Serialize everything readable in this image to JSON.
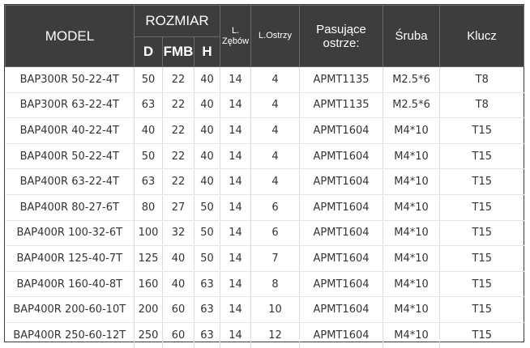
{
  "headers": {
    "model": "MODEL",
    "rozmiar": "ROZMIAR",
    "d": "D",
    "fmb": "FMB",
    "h": "H",
    "zebow_line1": "L.",
    "zebow_line2": "Zębów",
    "ostrzy": "L.Ostrzy",
    "pasujace_line1": "Pasujące",
    "pasujace_line2": "ostrze:",
    "sruba": "Śruba",
    "klucz": "Klucz"
  },
  "rows": [
    {
      "model": "BAP300R 50-22-4T",
      "d": "50",
      "fmb": "22",
      "h": "40",
      "zebow": "14",
      "ostrzy": "4",
      "ostrze": "APMT1135",
      "sruba": "M2.5*6",
      "klucz": "T8"
    },
    {
      "model": "BAP300R 63-22-4T",
      "d": "63",
      "fmb": "22",
      "h": "40",
      "zebow": "14",
      "ostrzy": "4",
      "ostrze": "APMT1135",
      "sruba": "M2.5*6",
      "klucz": "T8"
    },
    {
      "model": "BAP400R 40-22-4T",
      "d": "40",
      "fmb": "22",
      "h": "40",
      "zebow": "14",
      "ostrzy": "4",
      "ostrze": "APMT1604",
      "sruba": "M4*10",
      "klucz": "T15"
    },
    {
      "model": "BAP400R 50-22-4T",
      "d": "50",
      "fmb": "22",
      "h": "40",
      "zebow": "14",
      "ostrzy": "4",
      "ostrze": "APMT1604",
      "sruba": "M4*10",
      "klucz": "T15"
    },
    {
      "model": "BAP400R 63-22-4T",
      "d": "63",
      "fmb": "22",
      "h": "40",
      "zebow": "14",
      "ostrzy": "4",
      "ostrze": "APMT1604",
      "sruba": "M4*10",
      "klucz": "T15"
    },
    {
      "model": "BAP400R 80-27-6T",
      "d": "80",
      "fmb": "27",
      "h": "50",
      "zebow": "14",
      "ostrzy": "6",
      "ostrze": "APMT1604",
      "sruba": "M4*10",
      "klucz": "T15"
    },
    {
      "model": "BAP400R 100-32-6T",
      "d": "100",
      "fmb": "32",
      "h": "50",
      "zebow": "14",
      "ostrzy": "6",
      "ostrze": "APMT1604",
      "sruba": "M4*10",
      "klucz": "T15"
    },
    {
      "model": "BAP400R 125-40-7T",
      "d": "125",
      "fmb": "40",
      "h": "50",
      "zebow": "14",
      "ostrzy": "7",
      "ostrze": "APMT1604",
      "sruba": "M4*10",
      "klucz": "T15"
    },
    {
      "model": "BAP400R 160-40-8T",
      "d": "160",
      "fmb": "40",
      "h": "63",
      "zebow": "14",
      "ostrzy": "8",
      "ostrze": "APMT1604",
      "sruba": "M4*10",
      "klucz": "T15"
    },
    {
      "model": "BAP400R 200-60-10T",
      "d": "200",
      "fmb": "60",
      "h": "63",
      "zebow": "14",
      "ostrzy": "10",
      "ostrze": "APMT1604",
      "sruba": "M4*10",
      "klucz": "T15"
    },
    {
      "model": "BAP400R 250-60-12T",
      "d": "250",
      "fmb": "60",
      "h": "63",
      "zebow": "14",
      "ostrzy": "12",
      "ostrze": "APMT1604",
      "sruba": "M4*10",
      "klucz": "T15"
    }
  ]
}
